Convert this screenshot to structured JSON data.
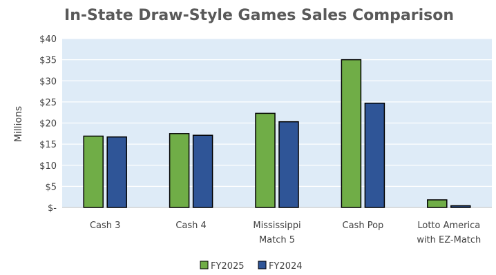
{
  "chart_data": {
    "type": "bar",
    "title": "In-State Draw-Style Games Sales Comparison",
    "xlabel": "",
    "ylabel": "Millions",
    "ylim": [
      0,
      40
    ],
    "yticks": [
      0,
      5,
      10,
      15,
      20,
      25,
      30,
      35,
      40
    ],
    "ytick_labels": [
      "$-",
      "$5",
      "$10",
      "$15",
      "$20",
      "$25",
      "$30",
      "$35",
      "$40"
    ],
    "categories": [
      [
        "Cash 3"
      ],
      [
        "Cash 4"
      ],
      [
        "Mississippi",
        "Match 5"
      ],
      [
        "Cash Pop"
      ],
      [
        "Lotto America",
        "with EZ-Match"
      ]
    ],
    "series": [
      {
        "name": "FY2025",
        "color": "#70ad47",
        "values": [
          16.9,
          17.5,
          22.3,
          35.0,
          1.8
        ]
      },
      {
        "name": "FY2024",
        "color": "#2f5597",
        "values": [
          16.7,
          17.1,
          20.3,
          24.7,
          0.4
        ]
      }
    ],
    "grid": true,
    "plot_background": "#deebf7",
    "legend_position": "bottom"
  }
}
